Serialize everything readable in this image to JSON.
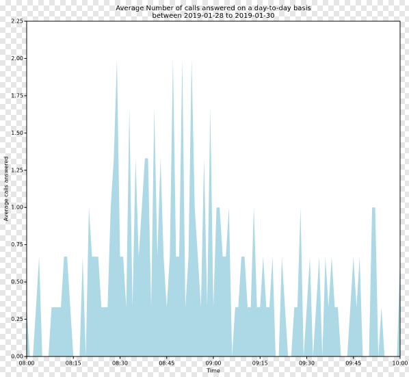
{
  "chart_data": {
    "type": "area",
    "title": "Average Number of calls answered on a day-to-day basis",
    "subtitle": "between  2019-01-28 to 2019-01-30",
    "xlabel": "Time",
    "ylabel": "Average calls answered",
    "color": "#add8e6",
    "x": [
      "08:00",
      "08:01",
      "08:02",
      "08:03",
      "08:04",
      "08:05",
      "08:06",
      "08:07",
      "08:08",
      "08:09",
      "08:10",
      "08:11",
      "08:12",
      "08:13",
      "08:14",
      "08:15",
      "08:16",
      "08:17",
      "08:18",
      "08:19",
      "08:20",
      "08:21",
      "08:22",
      "08:23",
      "08:24",
      "08:25",
      "08:26",
      "08:27",
      "08:28",
      "08:29",
      "08:30",
      "08:31",
      "08:32",
      "08:33",
      "08:34",
      "08:35",
      "08:36",
      "08:37",
      "08:38",
      "08:39",
      "08:40",
      "08:41",
      "08:42",
      "08:43",
      "08:44",
      "08:45",
      "08:46",
      "08:47",
      "08:48",
      "08:49",
      "08:50",
      "08:51",
      "08:52",
      "08:53",
      "08:54",
      "08:55",
      "08:56",
      "08:57",
      "08:58",
      "08:59",
      "09:00",
      "09:01",
      "09:02",
      "09:03",
      "09:04",
      "09:05",
      "09:06",
      "09:07",
      "09:08",
      "09:09",
      "09:10",
      "09:11",
      "09:12",
      "09:13",
      "09:14",
      "09:15",
      "09:16",
      "09:17",
      "09:18",
      "09:19",
      "09:20",
      "09:21",
      "09:22",
      "09:23",
      "09:24",
      "09:25",
      "09:26",
      "09:27",
      "09:28",
      "09:29",
      "09:30",
      "09:31",
      "09:32",
      "09:33",
      "09:34",
      "09:35",
      "09:36",
      "09:37",
      "09:38",
      "09:39",
      "09:40",
      "09:41",
      "09:42",
      "09:43",
      "09:44",
      "09:45",
      "09:46",
      "09:47",
      "09:48",
      "09:49",
      "09:50",
      "09:51",
      "09:52",
      "09:53",
      "09:54",
      "09:55",
      "09:56",
      "09:57",
      "09:58",
      "09:59",
      "10:00"
    ],
    "values": [
      0.33,
      0,
      0,
      0.33,
      0.67,
      0,
      0,
      0,
      0.33,
      0.33,
      0.33,
      0.33,
      0.67,
      0.67,
      0.33,
      0,
      0,
      0,
      0.67,
      0,
      1,
      0.67,
      0.67,
      0.67,
      0.33,
      0.33,
      0.33,
      1,
      1.33,
      2,
      0.67,
      0.67,
      0.33,
      1.67,
      0.33,
      1.33,
      0.67,
      1,
      1.33,
      1.33,
      0.33,
      1.67,
      0.67,
      1.33,
      0.67,
      0.33,
      0.67,
      2,
      0.67,
      0.67,
      2,
      0.33,
      0.67,
      2,
      1,
      0.67,
      0.33,
      1.33,
      0.33,
      1.67,
      0.33,
      1,
      1,
      0.67,
      0.67,
      1,
      0,
      0.33,
      0.33,
      0.67,
      0.67,
      0.33,
      0.33,
      1,
      0.33,
      0.33,
      0.67,
      0.33,
      0.33,
      0.67,
      0,
      0,
      0.67,
      0.33,
      0,
      0,
      0.33,
      0.33,
      1,
      0,
      0.33,
      0.67,
      0,
      0.33,
      0.67,
      0,
      0.67,
      0.33,
      0.67,
      0.33,
      0.33,
      0,
      0,
      0,
      0.33,
      0.67,
      0.33,
      0.67,
      0,
      0,
      0,
      1,
      1,
      0,
      0.33,
      0,
      0,
      0,
      0,
      0,
      0.67
    ],
    "xlim": [
      "08:00",
      "10:00"
    ],
    "xticks": [
      "08:00",
      "08:15",
      "08:30",
      "08:45",
      "09:00",
      "09:15",
      "09:30",
      "09:45",
      "10:00"
    ],
    "ylim": [
      0,
      2.25
    ],
    "yticks": [
      {
        "value": 0,
        "label": "0.00"
      },
      {
        "value": 0.25,
        "label": "0.25"
      },
      {
        "value": 0.5,
        "label": "0.50"
      },
      {
        "value": 0.75,
        "label": "0.75"
      },
      {
        "value": 1,
        "label": "1.00"
      },
      {
        "value": 1.25,
        "label": "1.25"
      },
      {
        "value": 1.5,
        "label": "1.50"
      },
      {
        "value": 1.75,
        "label": "1.75"
      },
      {
        "value": 2,
        "label": "2.00"
      },
      {
        "value": 2.25,
        "label": "2.25"
      }
    ]
  }
}
